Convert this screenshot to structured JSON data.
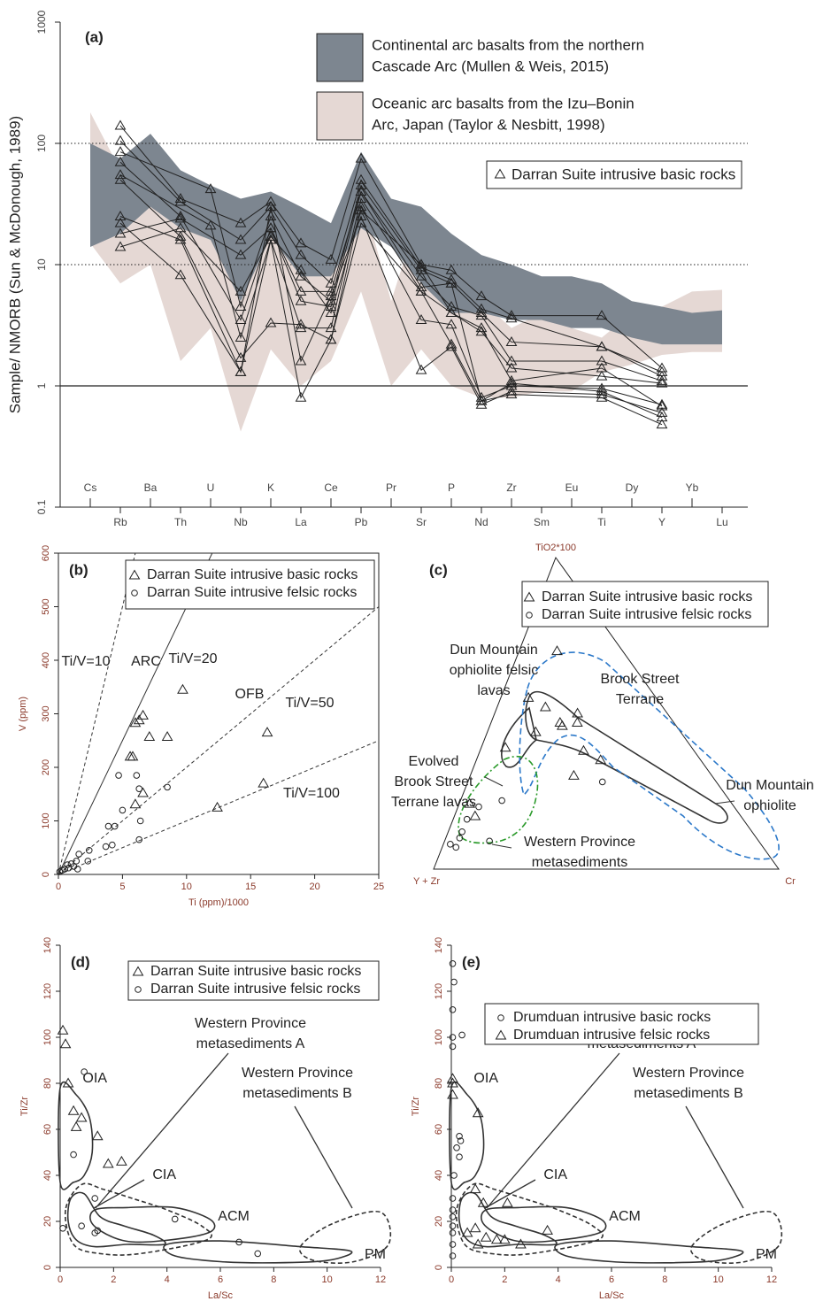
{
  "chart_data": [
    {
      "type": "line",
      "panel": "(a)",
      "ylabel": "Sample/ NMORB (Sun & McDonough, 1989)",
      "log_y": true,
      "ylim": [
        0.1,
        1000
      ],
      "yticks": [
        0.1,
        1,
        10,
        100,
        1000
      ],
      "reference_lines": [
        {
          "value": 1,
          "style": "solid"
        },
        {
          "value": 10,
          "style": "dotted"
        },
        {
          "value": 100,
          "style": "dotted"
        }
      ],
      "categories": [
        "Cs",
        "Rb",
        "Ba",
        "Th",
        "U",
        "Nb",
        "K",
        "La",
        "Ce",
        "Pb",
        "Pr",
        "Sr",
        "P",
        "Nd",
        "Zr",
        "Sm",
        "Eu",
        "Ti",
        "Dy",
        "Y",
        "Yb",
        "Lu"
      ],
      "bands": [
        {
          "name": [
            "Oceanic arc basalts from the Izu–Bonin",
            "Arc, Japan (Taylor & Nesbitt, 1998)"
          ],
          "color": "#e5d8d4",
          "high": [
            180,
            60,
            40,
            20,
            25,
            6,
            30,
            10,
            12,
            40,
            5,
            30,
            8,
            5,
            3,
            4,
            3,
            2.5,
            4,
            4.5,
            6,
            6.2
          ],
          "low": [
            15,
            7,
            10,
            1.6,
            3,
            0.42,
            2,
            1,
            1.6,
            6,
            1,
            2,
            1,
            0.8,
            0.8,
            0.9,
            0.9,
            1.3,
            1.5,
            1.8,
            1.9,
            1.9
          ]
        },
        {
          "name": [
            "Continental arc basalts from the northern",
            "Cascade Arc (Mullen & Weis, 2015)"
          ],
          "color": "#7d8690",
          "high": [
            100,
            75,
            120,
            60,
            45,
            35,
            40,
            30,
            22,
            85,
            35,
            30,
            18,
            12,
            10,
            8,
            8,
            7,
            5,
            4.5,
            4,
            4.2
          ],
          "low": [
            14,
            18,
            30,
            20,
            16,
            5,
            17,
            8,
            8,
            20,
            14,
            7,
            4,
            4,
            3.5,
            3.5,
            3,
            3,
            2.5,
            2.2,
            2.2,
            2.2
          ]
        }
      ],
      "series": [
        {
          "name": "Darran Suite intrusive basic rocks",
          "marker": "triangle",
          "color": "#222",
          "lines": [
            {
              "x": [
                "Rb",
                "Th",
                "Nb",
                "K",
                "La",
                "Ce",
                "Pb",
                "Sr",
                "P",
                "Nd",
                "Zr",
                "Ti",
                "Y"
              ],
              "values": [
                140,
                35,
                22,
                33,
                15,
                11,
                75,
                10,
                9,
                5.5,
                3.8,
                3.8,
                1.4
              ]
            },
            {
              "x": [
                "Rb",
                "Th",
                "Nb",
                "K",
                "La",
                "Ce",
                "Pb",
                "Sr",
                "P",
                "Nd",
                "Zr",
                "Ti",
                "Y"
              ],
              "values": [
                105,
                33,
                16,
                30,
                12,
                7,
                50,
                9.5,
                7.5,
                4.3,
                3.6,
                2.1,
                1.3
              ]
            },
            {
              "x": [
                "Rb",
                "U",
                "Nb",
                "K",
                "La",
                "Ce",
                "Pb",
                "Sr",
                "P",
                "Nd",
                "Zr",
                "Ti",
                "Y"
              ],
              "values": [
                85,
                42,
                4.5,
                25,
                8,
                5,
                45,
                9,
                7,
                4,
                2.3,
                2.1,
                1.2
              ]
            },
            {
              "x": [
                "Rb",
                "Th",
                "Nb",
                "K",
                "La",
                "Ce",
                "Pb",
                "Sr",
                "P",
                "Nd",
                "Zr",
                "Ti",
                "Y"
              ],
              "values": [
                70,
                25,
                3.5,
                20,
                5,
                4.5,
                40,
                8,
                4.5,
                3.8,
                1.6,
                1.6,
                1.1
              ]
            },
            {
              "x": [
                "Rb",
                "U",
                "Nb",
                "K",
                "La",
                "Ce",
                "Pb",
                "Sr",
                "P",
                "Nd",
                "Zr",
                "Ti",
                "Y"
              ],
              "values": [
                55,
                21,
                2.5,
                16,
                3,
                3,
                35,
                6,
                4,
                2.8,
                1.4,
                1.2,
                1.05
              ]
            },
            {
              "x": [
                "Rb",
                "Th",
                "Nb",
                "K",
                "La",
                "Ce",
                "Pb",
                "Sr",
                "P",
                "Nd",
                "Zr",
                "Ti",
                "Y"
              ],
              "values": [
                50,
                17,
                1.7,
                3.3,
                3.2,
                2.4,
                30,
                3.5,
                3.2,
                0.8,
                1.0,
                0.95,
                0.7
              ]
            },
            {
              "x": [
                "Rb",
                "Th",
                "Nb",
                "K",
                "La",
                "Ce",
                "Pb",
                "Sr",
                "P",
                "Nd",
                "Zr",
                "Ti",
                "Y"
              ],
              "values": [
                25,
                16,
                1.3,
                30,
                1.6,
                5.5,
                25,
                1.35,
                2.1,
                0.7,
                0.9,
                0.85,
                0.6
              ]
            },
            {
              "x": [
                "Rb",
                "Th",
                "Nb",
                "K",
                "La",
                "Ce",
                "Pb",
                "Sr",
                "P",
                "Nd",
                "Zr",
                "Ti",
                "Y"
              ],
              "values": [
                22,
                8.2,
                1.3,
                16,
                0.8,
                2.4,
                22,
                6,
                2.2,
                0.75,
                0.85,
                0.8,
                0.48
              ]
            },
            {
              "x": [
                "Rb",
                "Th",
                "Nb",
                "K",
                "La",
                "Ce",
                "Pb",
                "Sr",
                "P",
                "Nd",
                "Zr",
                "Ti",
                "Y"
              ],
              "values": [
                18,
                24,
                12,
                20,
                6,
                6,
                40,
                6.5,
                7,
                0.75,
                1.05,
                0.9,
                0.55
              ]
            },
            {
              "x": [
                "Rb",
                "Th",
                "Nb",
                "K",
                "La",
                "Ce",
                "Pb",
                "Sr",
                "P",
                "Nd",
                "Zr",
                "Ti",
                "Y"
              ],
              "values": [
                14,
                20,
                6,
                17,
                9,
                4,
                28,
                10,
                4,
                3,
                1.1,
                1.4,
                0.68
              ]
            }
          ]
        }
      ]
    },
    {
      "type": "scatter",
      "panel": "(b)",
      "xlabel": "Ti (ppm)/1000",
      "ylabel": "V (ppm)",
      "xlim": [
        0,
        25
      ],
      "ylim": [
        0,
        600
      ],
      "xticks": [
        0,
        5,
        10,
        15,
        20,
        25
      ],
      "yticks": [
        0,
        100,
        200,
        300,
        400,
        500,
        600
      ],
      "ratio_lines": [
        {
          "label": "Ti/V=10",
          "ratio": 10,
          "style": "dashed"
        },
        {
          "label": "Ti/V=20",
          "ratio": 20,
          "style": "solid"
        },
        {
          "label": "Ti/V=50",
          "ratio": 50,
          "style": "dashed"
        },
        {
          "label": "Ti/V=100",
          "ratio": 100,
          "style": "dashed"
        }
      ],
      "fields": [
        "ARC",
        "OFB"
      ],
      "series": [
        {
          "name": "Darran Suite intrusive basic rocks",
          "marker": "triangle",
          "x": [
            9.7,
            6.6,
            6.3,
            6.0,
            7.1,
            8.5,
            5.8,
            5.6,
            6.6,
            6.0,
            16.3,
            16.0,
            12.4
          ],
          "values": [
            345,
            297,
            288,
            283,
            257,
            257,
            220,
            220,
            152,
            131,
            265,
            170,
            125
          ]
        },
        {
          "name": "Darran Suite intrusive felsic rocks",
          "marker": "circle",
          "x": [
            4.7,
            6.1,
            6.3,
            8.5,
            5.0,
            6.4,
            3.9,
            4.4,
            6.3,
            3.7,
            4.2,
            2.4,
            1.6,
            1.4,
            2.3,
            1.0,
            1.2,
            0.8,
            0.5,
            0.3,
            0.1,
            0.7,
            1.5
          ],
          "values": [
            185,
            185,
            160,
            163,
            120,
            100,
            90,
            90,
            65,
            52,
            55,
            45,
            38,
            25,
            25,
            20,
            15,
            12,
            10,
            8,
            5,
            18,
            10
          ]
        }
      ]
    },
    {
      "type": "ternary",
      "panel": "(c)",
      "axes": [
        "TiO2*100",
        "Y + Zr",
        "Cr"
      ],
      "fields": [
        [
          "Dun Mountain",
          "ophiolite felsic",
          "lavas"
        ],
        [
          "Brook Street",
          "Terrane"
        ],
        [
          "Evolved",
          "Brook Street",
          "Terrane lavas"
        ],
        [
          "Dun Mountain",
          "ophiolite"
        ],
        [
          "Western Province",
          "metasediments"
        ]
      ],
      "series": [
        {
          "name": "Darran Suite intrusive basic rocks",
          "marker": "triangle",
          "values": [
            [
              0.7,
              0.19,
              0.11
            ],
            [
              0.52,
              0.34,
              0.14
            ],
            [
              0.5,
              0.26,
              0.24
            ],
            [
              0.47,
              0.28,
              0.25
            ],
            [
              0.47,
              0.33,
              0.2
            ],
            [
              0.46,
              0.33,
              0.21
            ],
            [
              0.38,
              0.32,
              0.3
            ],
            [
              0.35,
              0.29,
              0.36
            ],
            [
              0.3,
              0.4,
              0.3
            ],
            [
              0.44,
              0.42,
              0.14
            ],
            [
              0.55,
              0.37,
              0.08
            ],
            [
              0.39,
              0.54,
              0.07
            ],
            [
              0.21,
              0.76,
              0.03
            ],
            [
              0.17,
              0.77,
              0.06
            ]
          ]
        },
        {
          "name": "Darran Suite intrusive felsic rocks",
          "marker": "circle",
          "values": [
            [
              0.22,
              0.66,
              0.12
            ],
            [
              0.2,
              0.74,
              0.06
            ],
            [
              0.16,
              0.8,
              0.04
            ],
            [
              0.12,
              0.84,
              0.04
            ],
            [
              0.1,
              0.86,
              0.04
            ],
            [
              0.07,
              0.89,
              0.04
            ],
            [
              0.09,
              0.78,
              0.13
            ],
            [
              0.28,
              0.33,
              0.39
            ],
            [
              0.08,
              0.9,
              0.02
            ]
          ]
        }
      ]
    },
    {
      "type": "scatter",
      "panel": "(d)",
      "xlabel": "La/Sc",
      "ylabel": "Ti/Zr",
      "xlim": [
        0,
        12
      ],
      "ylim": [
        0,
        140
      ],
      "xticks": [
        0,
        2,
        4,
        6,
        8,
        10,
        12
      ],
      "yticks": [
        0,
        20,
        40,
        60,
        80,
        100,
        120,
        140
      ],
      "fields": [
        "OIA",
        "CIA",
        "ACM",
        "PM"
      ],
      "field_notes": [
        [
          "Western Province",
          "metasediments A"
        ],
        [
          "Western Province",
          "metasediments B"
        ]
      ],
      "series": [
        {
          "name": "Darran Suite intrusive basic rocks",
          "marker": "triangle",
          "x": [
            0.1,
            0.2,
            0.3,
            0.5,
            0.8,
            0.6,
            1.4,
            1.8,
            2.3
          ],
          "values": [
            103,
            97,
            80,
            68,
            65,
            61,
            57,
            45,
            46
          ]
        },
        {
          "name": "Darran Suite intrusive felsic rocks",
          "marker": "circle",
          "x": [
            0.9,
            0.5,
            0.8,
            1.3,
            1.4,
            1.3,
            4.3,
            6.7,
            7.4,
            0.1
          ],
          "values": [
            85,
            49,
            18,
            30,
            16,
            15,
            21,
            11,
            6,
            17
          ]
        }
      ]
    },
    {
      "type": "scatter",
      "panel": "(e)",
      "xlabel": "La/Sc",
      "ylabel": "Ti/Zr",
      "xlim": [
        0,
        12
      ],
      "ylim": [
        0,
        140
      ],
      "xticks": [
        0,
        2,
        4,
        6,
        8,
        10,
        12
      ],
      "yticks": [
        0,
        20,
        40,
        60,
        80,
        100,
        120,
        140
      ],
      "fields": [
        "OIA",
        "CIA",
        "ACM",
        "PM"
      ],
      "field_notes": [
        [
          "Western Province",
          "metasediments A"
        ],
        [
          "Western Province",
          "metasediments B"
        ]
      ],
      "series": [
        {
          "name": "Drumduan intrusive basic rocks",
          "marker": "circle",
          "x": [
            0.05,
            0.1,
            0.05,
            0.05,
            0.05,
            0.4,
            0.3,
            0.35,
            0.2,
            0.3,
            0.1,
            0.05,
            0.05,
            0.05,
            0.05,
            0.05,
            0.05,
            0.05
          ],
          "values": [
            132,
            124,
            112,
            100,
            96,
            101,
            57,
            55,
            52,
            48,
            40,
            30,
            25,
            22,
            18,
            15,
            10,
            5
          ]
        },
        {
          "name": "Drumduan intrusive felsic rocks",
          "marker": "triangle",
          "x": [
            0.05,
            0.05,
            0.05,
            1.0,
            0.9,
            1.2,
            2.1,
            0.6,
            1.3,
            1.7,
            2.0,
            2.6,
            3.6,
            1.0,
            0.9
          ],
          "values": [
            82,
            80,
            75,
            67,
            34,
            28,
            28,
            15,
            13,
            12,
            12,
            10,
            16,
            10,
            17
          ]
        }
      ]
    }
  ]
}
